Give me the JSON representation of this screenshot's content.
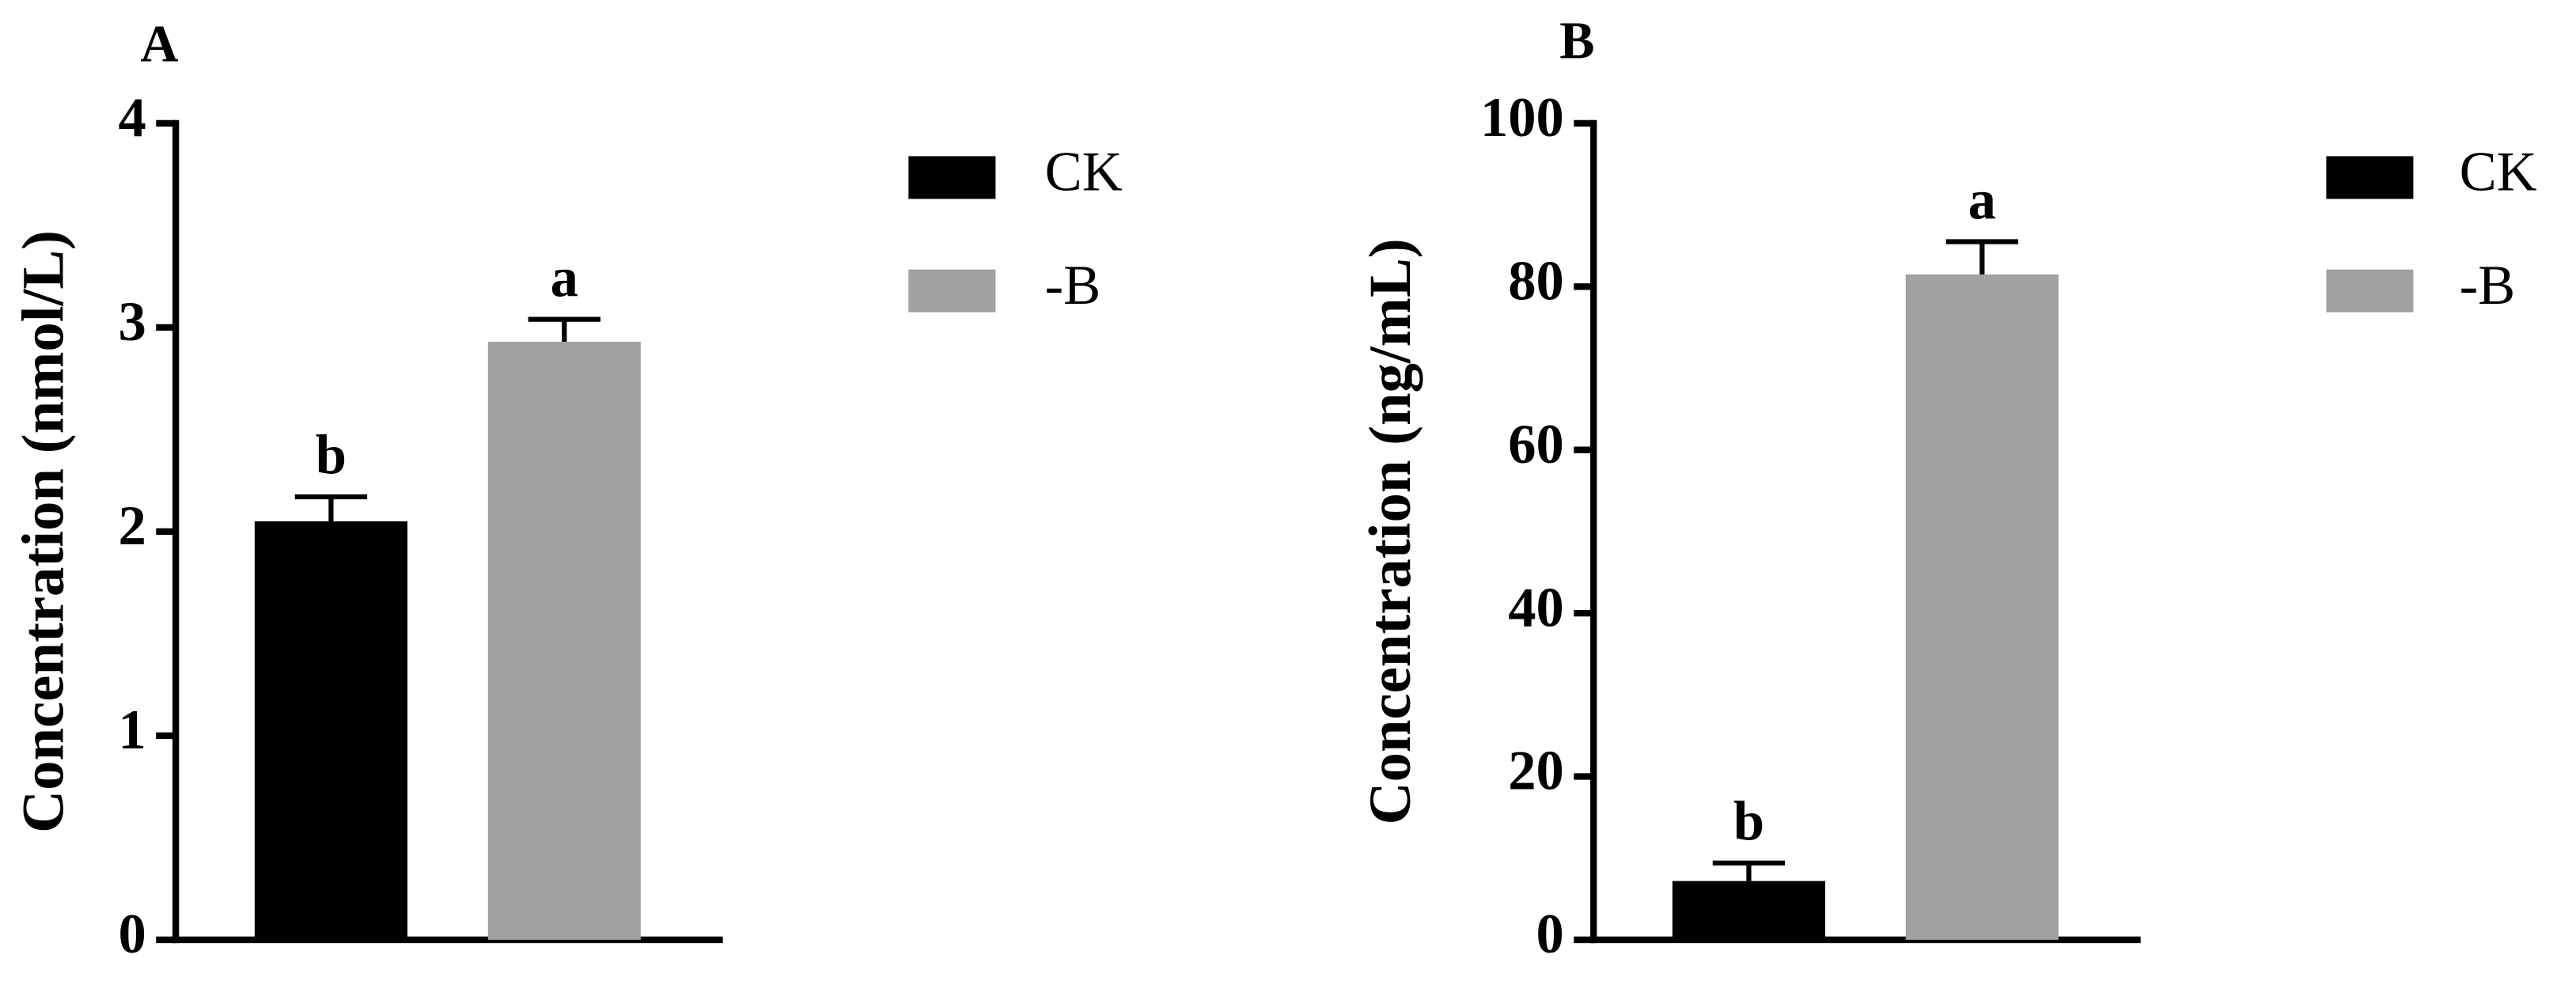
{
  "chart_data": [
    {
      "type": "bar",
      "title": "A",
      "y_label": "Concentration (nmol/L)",
      "ylim": [
        0,
        4
      ],
      "yticks": [
        0,
        1,
        2,
        3,
        4
      ],
      "series": [
        {
          "name": "CK",
          "color": "#000000",
          "values": [
            2.05
          ],
          "errors": [
            0.12
          ],
          "letters": [
            "b"
          ]
        },
        {
          "name": "-B",
          "color": "#a1a1a4",
          "values": [
            2.93
          ],
          "errors": [
            0.11
          ],
          "letters": [
            "a"
          ]
        }
      ]
    },
    {
      "type": "bar",
      "title": "B",
      "y_label": "Concentration (ng/mL)",
      "ylim": [
        0,
        100
      ],
      "yticks": [
        0,
        20,
        40,
        60,
        80,
        100
      ],
      "series": [
        {
          "name": "CK",
          "color": "#000000",
          "values": [
            7.2
          ],
          "errors": [
            2.2
          ],
          "letters": [
            "b"
          ]
        },
        {
          "name": "-B",
          "color": "#a1a1a4",
          "values": [
            81.5
          ],
          "errors": [
            4
          ],
          "letters": [
            "a"
          ]
        }
      ]
    }
  ]
}
